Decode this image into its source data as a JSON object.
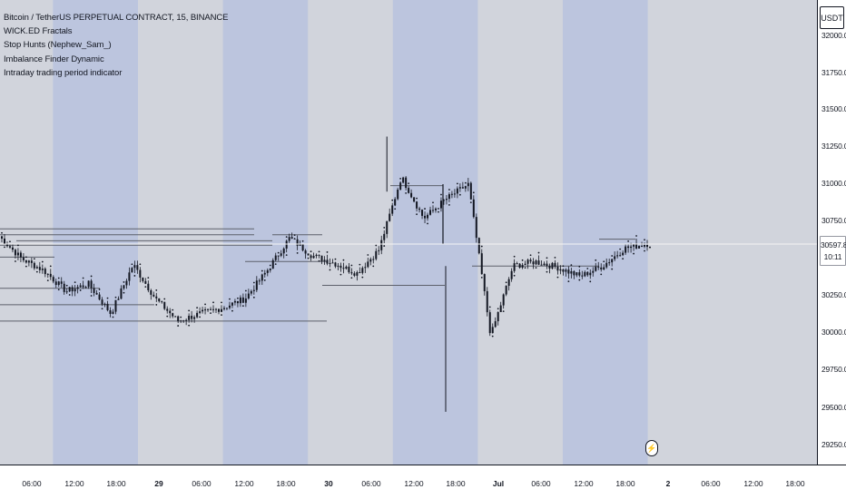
{
  "legend": {
    "symbol_title": "Bitcoin / TetherUS PERPETUAL CONTRACT, 15, BINANCE",
    "indicators": [
      "WICK.ED Fractals",
      "Stop Hunts (Nephew_Sam_)",
      "Imbalance Finder Dynamic",
      "Intraday trading period indicator"
    ]
  },
  "price_axis": {
    "currency": "USDT",
    "labels": [
      "32000.0",
      "31750.0",
      "31500.0",
      "31250.0",
      "31000.0",
      "30750.0",
      "30500.0",
      "30250.0",
      "30000.0",
      "29750.0",
      "29500.0",
      "29250.0"
    ],
    "current_price": "30597.8",
    "countdown": "10:11"
  },
  "time_axis": {
    "labels": [
      {
        "text": "06:00",
        "major": false
      },
      {
        "text": "12:00",
        "major": false
      },
      {
        "text": "18:00",
        "major": false
      },
      {
        "text": "29",
        "major": true
      },
      {
        "text": "06:00",
        "major": false
      },
      {
        "text": "12:00",
        "major": false
      },
      {
        "text": "18:00",
        "major": false
      },
      {
        "text": "30",
        "major": true
      },
      {
        "text": "06:00",
        "major": false
      },
      {
        "text": "12:00",
        "major": false
      },
      {
        "text": "18:00",
        "major": false
      },
      {
        "text": "Jul",
        "major": true
      },
      {
        "text": "06:00",
        "major": false
      },
      {
        "text": "12:00",
        "major": false
      },
      {
        "text": "18:00",
        "major": false
      },
      {
        "text": "2",
        "major": true
      },
      {
        "text": "06:00",
        "major": false
      },
      {
        "text": "12:00",
        "major": false
      },
      {
        "text": "18:00",
        "major": false
      }
    ]
  },
  "chart_data": {
    "type": "line",
    "interval": "15",
    "exchange": "BINANCE",
    "x": [
      "Jun 28 03:00",
      "Jun 28 06:00",
      "Jun 28 09:00",
      "Jun 28 12:00",
      "Jun 28 15:00",
      "Jun 28 18:00",
      "Jun 28 21:00",
      "Jun 29 00:00",
      "Jun 29 03:00",
      "Jun 29 06:00",
      "Jun 29 09:00",
      "Jun 29 12:00",
      "Jun 29 15:00",
      "Jun 29 18:00",
      "Jun 29 21:00",
      "Jun 30 00:00",
      "Jun 30 03:00",
      "Jun 30 06:00",
      "Jun 30 09:00",
      "Jun 30 12:00",
      "Jun 30 15:00",
      "Jun 30 18:00",
      "Jun 30 21:00",
      "Jul 01 00:00",
      "Jul 01 03:00",
      "Jul 01 06:00",
      "Jul 01 09:00",
      "Jul 01 12:00",
      "Jul 01 15:00",
      "Jul 01 18:00"
    ],
    "series": [
      {
        "values": [
          30650,
          30500,
          30420,
          30280,
          30330,
          30130,
          30460,
          30230,
          30080,
          30130,
          30170,
          30230,
          30420,
          30640,
          30520,
          30470,
          30400,
          30560,
          31050,
          30770,
          30900,
          31000,
          29980,
          30450,
          30480,
          30440,
          30380,
          30450,
          30570,
          30600
        ]
      }
    ],
    "ylim": [
      29100,
      32050
    ],
    "y_ticks": [
      29250,
      29500,
      29750,
      30000,
      30250,
      30500,
      30750,
      31000,
      31250,
      31500,
      31750,
      32000
    ],
    "current_price": 30597.8,
    "price_high_wick": 31320,
    "price_low_wick": 29470,
    "session_shading": "blue bands mark the intraday trading period (approx. 09:00 to 21:00 each day)",
    "grid": false,
    "legend": "top-left"
  },
  "colors": {
    "background": "#d1d4dc",
    "session_band": "#bcc5de",
    "candles": "#131722",
    "current_price_line": "#f5f5f5",
    "level_lines": "#5d606b",
    "axis_background": "#ffffff"
  }
}
